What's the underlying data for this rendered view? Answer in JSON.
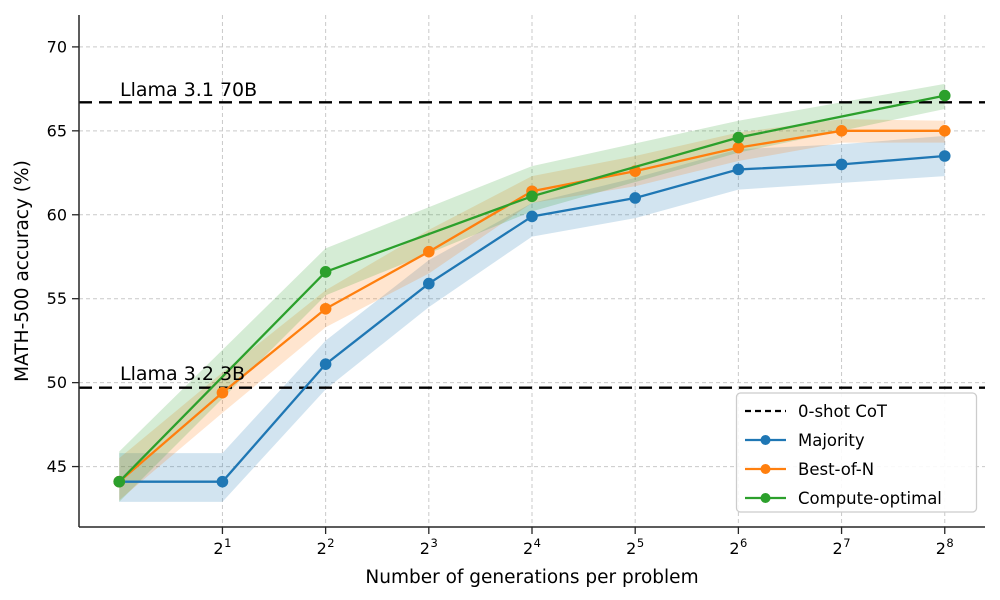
{
  "figure": {
    "background": "#ffffff",
    "grid_color": "#c9c9c9",
    "spine_color": "#262626",
    "text_color": "#000000"
  },
  "chart_data": {
    "type": "line",
    "title": "",
    "xlabel": "Number of generations per problem",
    "ylabel": "MATH-500 accuracy (%)",
    "x_scale": "log2",
    "x_tick_base": "2",
    "x_tick_exponents": [
      1,
      2,
      3,
      4,
      5,
      6,
      7,
      8
    ],
    "y_ticks": [
      45,
      50,
      55,
      60,
      65,
      70
    ],
    "xlim_exponents": [
      -0.39,
      8.39
    ],
    "ylim": [
      41.4,
      71.9
    ],
    "grid": true,
    "legend_position": "lower right",
    "series": [
      {
        "name": "Majority",
        "color": "#1f77b4",
        "x_exponents": [
          0,
          1,
          2,
          3,
          4,
          5,
          6,
          7,
          8
        ],
        "values": [
          44.1,
          44.1,
          51.1,
          55.9,
          59.9,
          61.0,
          62.7,
          63.0,
          63.5
        ],
        "band_low": [
          42.9,
          42.9,
          49.6,
          54.5,
          58.7,
          59.8,
          61.5,
          61.9,
          62.3
        ],
        "band_high": [
          45.8,
          45.8,
          52.5,
          57.3,
          60.7,
          62.2,
          63.9,
          64.2,
          64.7
        ]
      },
      {
        "name": "Best-of-N",
        "color": "#ff7f0e",
        "x_exponents": [
          0,
          1,
          2,
          3,
          4,
          5,
          6,
          7,
          8
        ],
        "values": [
          44.1,
          49.4,
          54.4,
          57.8,
          61.4,
          62.6,
          64.0,
          65.0,
          65.0
        ],
        "band_low": [
          43.0,
          48.2,
          53.3,
          56.5,
          60.7,
          61.7,
          63.2,
          64.3,
          64.3
        ],
        "band_high": [
          45.5,
          50.6,
          55.5,
          59.1,
          62.3,
          63.5,
          64.9,
          65.7,
          65.6
        ]
      },
      {
        "name": "Compute-optimal",
        "color": "#2ca02c",
        "x_exponents": [
          0,
          2,
          4,
          6,
          8
        ],
        "values": [
          44.1,
          56.6,
          61.1,
          64.6,
          67.1
        ],
        "band_low": [
          42.9,
          55.2,
          60.2,
          63.7,
          66.3
        ],
        "band_high": [
          45.9,
          58.0,
          62.9,
          65.6,
          67.8
        ]
      }
    ],
    "baselines": [
      {
        "label": "Llama 3.1 70B",
        "value": 66.7,
        "color": "#000000",
        "style": "dashed"
      },
      {
        "label": "Llama 3.2 3B",
        "value": 49.7,
        "color": "#000000",
        "style": "dashed"
      }
    ],
    "legend": {
      "entries": [
        {
          "label": "0-shot CoT",
          "color": "#000000",
          "style": "dashed"
        },
        {
          "label": "Majority",
          "color": "#1f77b4",
          "style": "line-marker"
        },
        {
          "label": "Best-of-N",
          "color": "#ff7f0e",
          "style": "line-marker"
        },
        {
          "label": "Compute-optimal",
          "color": "#2ca02c",
          "style": "line-marker"
        }
      ]
    }
  }
}
